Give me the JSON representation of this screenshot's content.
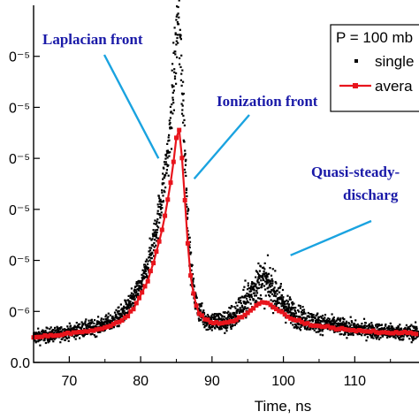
{
  "chart_data": {
    "type": "scatter",
    "xlabel": "Time, ns",
    "x_ticks": [
      "70",
      "80",
      "90",
      "100",
      "110"
    ],
    "y_tick_labels": [
      "0.0",
      "0⁻⁶",
      "0⁻⁵",
      "0⁻⁵",
      "0⁻⁵",
      "0⁻⁵",
      "0⁻⁵"
    ],
    "xlim": [
      65,
      119
    ],
    "ylim": [
      0,
      7
    ],
    "legend": {
      "placement": "top-right",
      "title": "P = 100 mb",
      "entries": [
        "single",
        "avera"
      ]
    },
    "annotations": [
      {
        "text": "Laplacian front",
        "target_x": 82.5,
        "target_y": 4.0
      },
      {
        "text": "Ionization front",
        "target_x": 87.5,
        "target_y": 3.6
      },
      {
        "text": "Quasi-steady-",
        "target_x": 101,
        "target_y": 2.1
      },
      {
        "text": "discharg",
        "target_x": 101,
        "target_y": 2.1
      }
    ],
    "series": [
      {
        "name": "single",
        "style": "black-dots",
        "x": [
          65,
          68,
          70,
          72,
          74,
          76,
          77,
          78,
          79,
          80,
          81,
          82,
          83,
          84,
          84.5,
          85,
          85.3,
          85.6,
          86,
          86.5,
          87,
          87.5,
          88,
          89,
          90,
          92,
          93,
          94,
          95,
          96,
          97,
          98,
          99,
          100,
          101,
          102,
          104,
          106,
          108,
          110,
          112,
          115,
          119
        ],
        "y": [
          0.5,
          0.55,
          0.6,
          0.65,
          0.7,
          0.8,
          0.9,
          1.05,
          1.25,
          1.5,
          1.9,
          2.5,
          3.3,
          4.3,
          5.3,
          6.3,
          6.8,
          6.1,
          4.8,
          3.1,
          1.9,
          1.3,
          1.05,
          0.85,
          0.8,
          0.8,
          0.9,
          1.05,
          1.25,
          1.5,
          1.62,
          1.52,
          1.35,
          1.15,
          1.0,
          0.9,
          0.8,
          0.75,
          0.7,
          0.66,
          0.63,
          0.6,
          0.58
        ],
        "spread": [
          0.18,
          0.18,
          0.18,
          0.2,
          0.2,
          0.22,
          0.24,
          0.26,
          0.28,
          0.3,
          0.35,
          0.45,
          0.55,
          0.7,
          0.9,
          1.2,
          1.4,
          1.2,
          0.9,
          0.6,
          0.4,
          0.3,
          0.28,
          0.26,
          0.26,
          0.3,
          0.35,
          0.4,
          0.45,
          0.5,
          0.55,
          0.5,
          0.45,
          0.4,
          0.35,
          0.3,
          0.26,
          0.24,
          0.22,
          0.2,
          0.2,
          0.2,
          0.2
        ]
      },
      {
        "name": "avera",
        "style": "red-line-markers",
        "color": "#e8141c",
        "x": [
          65,
          67,
          69,
          71,
          73,
          75,
          76,
          77,
          78,
          79,
          80,
          81,
          82,
          83,
          83.5,
          84,
          84.5,
          85,
          85.5,
          86,
          86.5,
          87,
          87.5,
          88,
          89,
          90,
          91,
          92,
          93,
          94,
          95,
          96,
          97,
          98,
          99,
          100,
          101,
          102,
          103,
          104,
          106,
          108,
          110,
          112,
          114,
          116,
          119
        ],
        "y": [
          0.5,
          0.52,
          0.55,
          0.58,
          0.62,
          0.68,
          0.72,
          0.8,
          0.9,
          1.05,
          1.3,
          1.6,
          2.05,
          2.6,
          2.95,
          3.35,
          3.8,
          4.4,
          4.6,
          3.6,
          2.5,
          1.7,
          1.25,
          1.0,
          0.85,
          0.78,
          0.76,
          0.78,
          0.82,
          0.88,
          0.98,
          1.1,
          1.18,
          1.15,
          1.05,
          0.95,
          0.88,
          0.82,
          0.77,
          0.74,
          0.7,
          0.66,
          0.63,
          0.61,
          0.59,
          0.58,
          0.57
        ]
      }
    ],
    "colors": {
      "annotation_text": "#1a1aa8",
      "annotation_line": "#1aa3e0",
      "average": "#e8141c",
      "single": "#000000"
    }
  }
}
